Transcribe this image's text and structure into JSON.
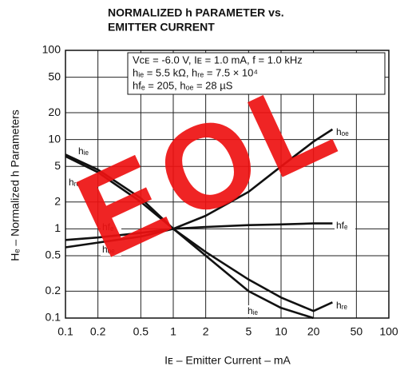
{
  "chart_data": {
    "type": "line",
    "title": [
      "NORMALIZED h PARAMETER vs.",
      "EMITTER CURRENT"
    ],
    "x_label": "Iᴇ – Emitter Current – mA",
    "y_label": "Hₑ – Normalized h Parameters",
    "annotations": [
      "Vᴄᴇ = -6.0 V, Iᴇ = 1.0 mA, f = 1.0 kHz",
      "hᵢₑ = 5.5 kΩ, hᵣₑ = 7.5 × 10⁴",
      "hfₑ = 205, hₒₑ = 28 µS"
    ],
    "watermark": "EOL",
    "log_x": true,
    "log_y": true,
    "grid": true,
    "xlim": [
      0.1,
      100
    ],
    "ylim": [
      0.1,
      100
    ],
    "xticks": [
      0.1,
      0.2,
      0.5,
      1,
      2,
      5,
      10,
      20,
      50,
      100
    ],
    "yticks": [
      0.1,
      0.2,
      0.5,
      1,
      2,
      5,
      10,
      20,
      50,
      100
    ],
    "x": [
      0.1,
      0.2,
      0.5,
      1,
      2,
      5,
      10,
      20,
      30
    ],
    "series": [
      {
        "name": "hᵢₑ",
        "color": "#111111",
        "values": [
          6.5,
          4.3,
          2.0,
          1,
          0.5,
          0.2,
          0.13,
          0.1,
          null
        ]
      },
      {
        "name": "hᵣₑ",
        "color": "#111111",
        "values": [
          6.8,
          4.6,
          2.2,
          1,
          0.55,
          0.27,
          0.17,
          0.12,
          0.15
        ]
      },
      {
        "name": "hfₑ",
        "color": "#111111",
        "values": [
          0.75,
          0.8,
          0.9,
          1,
          1.05,
          1.1,
          1.12,
          1.15,
          1.15
        ]
      },
      {
        "name": "hₒₑ",
        "color": "#111111",
        "values": [
          0.62,
          0.7,
          0.82,
          1,
          1.4,
          2.6,
          5,
          9.5,
          13
        ]
      }
    ]
  }
}
